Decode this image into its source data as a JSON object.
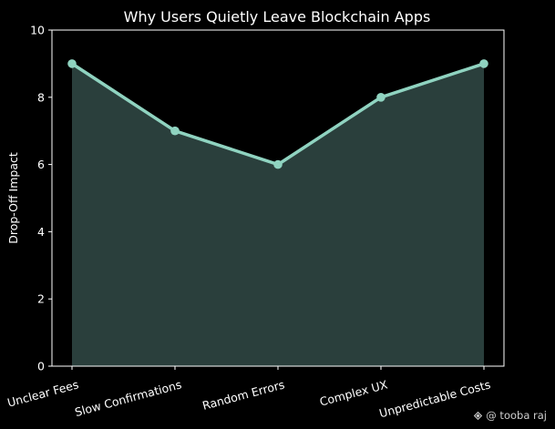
{
  "chart_data": {
    "type": "area",
    "title": "Why Users Quietly Leave Blockchain Apps",
    "xlabel": "",
    "ylabel": "Drop-Off Impact",
    "categories": [
      "Unclear Fees",
      "Slow Confirmations",
      "Random Errors",
      "Complex UX",
      "Unpredictable Costs"
    ],
    "series": [
      {
        "values": [
          9,
          7,
          6,
          8,
          9
        ]
      }
    ],
    "ylim": [
      0,
      10
    ],
    "yticks": [
      0,
      2,
      4,
      6,
      8,
      10
    ],
    "grid": false,
    "colors": {
      "line": "#8fd3c0",
      "fill": "#2a3f3c",
      "background": "#000000",
      "axes": "#ffffff"
    }
  },
  "watermark": {
    "icon": "binance-square-icon",
    "text": "@ tooba raj"
  }
}
